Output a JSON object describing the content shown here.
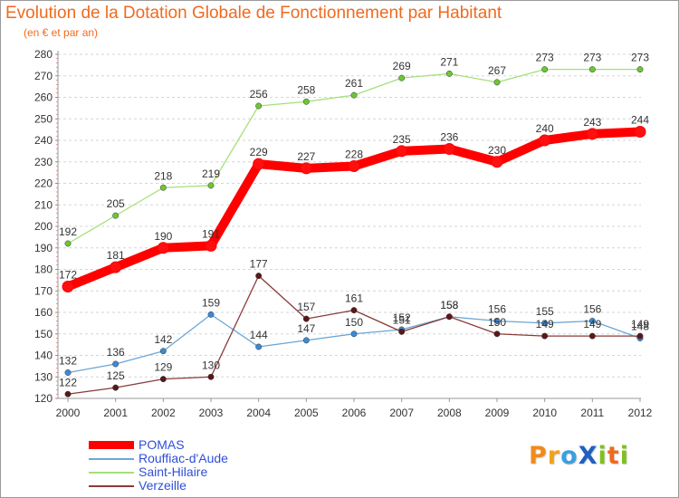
{
  "title": "Evolution de la Dotation Globale de Fonctionnement par Habitant",
  "subtitle": "(en € et par an)",
  "brand": {
    "text": "ProXiti",
    "letters": [
      "P",
      "r",
      "o",
      "X",
      "i",
      "t",
      "i"
    ],
    "colors": [
      "#f08a1c",
      "#f0a21c",
      "#3aa0e0",
      "#2060c0",
      "#80c020",
      "#f06a1e",
      "#80c020"
    ]
  },
  "chart_data": {
    "type": "line",
    "x": [
      "2000",
      "2001",
      "2002",
      "2003",
      "2004",
      "2005",
      "2006",
      "2007",
      "2008",
      "2009",
      "2010",
      "2011",
      "2012"
    ],
    "ylim": [
      120,
      280
    ],
    "yticks": [
      120,
      130,
      140,
      150,
      160,
      170,
      180,
      190,
      200,
      210,
      220,
      230,
      240,
      250,
      260,
      270,
      280
    ],
    "grid": true,
    "series": [
      {
        "name": "POMAS",
        "color": "#ff0000",
        "marker": "#ff1010",
        "width": "thick",
        "labels": [
          "172",
          "181",
          "190",
          "191",
          "229",
          "227",
          "228",
          "235",
          "236",
          "230",
          "240",
          "243",
          "244"
        ],
        "values": [
          172,
          181,
          190,
          191,
          229,
          227,
          228,
          235,
          236,
          230,
          240,
          243,
          244
        ]
      },
      {
        "name": "Rouffiac-d'Aude",
        "color": "#6aa7d8",
        "marker": "#3b8ad6",
        "width": "thin",
        "labels": [
          "132",
          "136",
          "142",
          "159",
          "144",
          "147",
          "150",
          "152",
          "158",
          "156",
          "155",
          "156",
          "148"
        ],
        "values": [
          132,
          136,
          142,
          159,
          144,
          147,
          150,
          152,
          158,
          156,
          155,
          156,
          148
        ]
      },
      {
        "name": "Saint-Hilaire",
        "color": "#a3e07a",
        "marker": "#6cc830",
        "width": "thin",
        "labels": [
          "192",
          "205",
          "218",
          "219",
          "256",
          "258",
          "261",
          "269",
          "271",
          "267",
          "273",
          "273",
          "273"
        ],
        "values": [
          192,
          205,
          218,
          219,
          256,
          258,
          261,
          269,
          271,
          267,
          273,
          273,
          273
        ]
      },
      {
        "name": "Verzeille",
        "color": "#8a3a3a",
        "marker": "#5a1818",
        "width": "thin",
        "labels": [
          "122",
          "125",
          "129",
          "130",
          "177",
          "157",
          "161",
          "151",
          "158",
          "150",
          "149",
          "149",
          "149"
        ],
        "values": [
          122,
          125,
          129,
          130,
          177,
          157,
          161,
          151,
          158,
          150,
          149,
          149,
          149
        ]
      }
    ]
  }
}
